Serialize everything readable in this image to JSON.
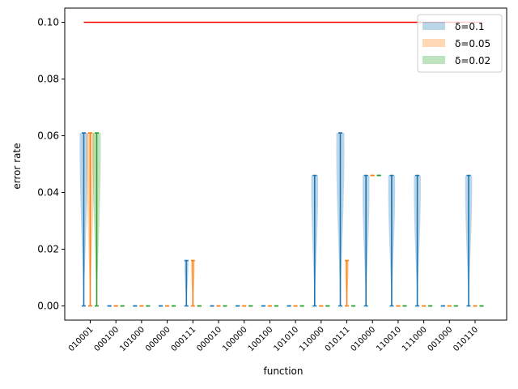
{
  "chart_data": {
    "type": "violin",
    "xlabel": "function",
    "ylabel": "error rate",
    "ylim": [
      -0.005,
      0.105
    ],
    "yticks": [
      0.0,
      0.02,
      0.04,
      0.06,
      0.08,
      0.1
    ],
    "ytick_labels": [
      "0.00",
      "0.02",
      "0.04",
      "0.06",
      "0.08",
      "0.10"
    ],
    "categories": [
      "010001",
      "000100",
      "101000",
      "000000",
      "000111",
      "000010",
      "100000",
      "100100",
      "101010",
      "110000",
      "010111",
      "010000",
      "110010",
      "111000",
      "001000",
      "010110"
    ],
    "reference_line": {
      "y": 0.1,
      "color": "#ff0000",
      "x_from_category": 0,
      "x_to_category": 15
    },
    "legend": {
      "placement": "top-right"
    },
    "series": [
      {
        "name": "δ=0.1",
        "color": "#1f77b4",
        "ranges": [
          [
            0.0,
            0.061
          ],
          [
            0.0,
            0.0
          ],
          [
            0.0,
            0.0
          ],
          [
            0.0,
            0.0
          ],
          [
            0.0,
            0.016
          ],
          [
            0.0,
            0.0
          ],
          [
            0.0,
            0.0
          ],
          [
            0.0,
            0.0
          ],
          [
            0.0,
            0.0
          ],
          [
            0.0,
            0.046
          ],
          [
            0.0,
            0.061
          ],
          [
            0.0,
            0.046
          ],
          [
            0.0,
            0.046
          ],
          [
            0.0,
            0.046
          ],
          [
            0.0,
            0.0
          ],
          [
            0.0,
            0.046
          ]
        ]
      },
      {
        "name": "δ=0.05",
        "color": "#ff7f0e",
        "ranges": [
          [
            0.0,
            0.061
          ],
          [
            0.0,
            0.0
          ],
          [
            0.0,
            0.0
          ],
          [
            0.0,
            0.0
          ],
          [
            0.0,
            0.016
          ],
          [
            0.0,
            0.0
          ],
          [
            0.0,
            0.0
          ],
          [
            0.0,
            0.0
          ],
          [
            0.0,
            0.0
          ],
          [
            0.0,
            0.0
          ],
          [
            0.0,
            0.016
          ],
          [
            0.046,
            0.046
          ],
          [
            0.0,
            0.0
          ],
          [
            0.0,
            0.0
          ],
          [
            0.0,
            0.0
          ],
          [
            0.0,
            0.0
          ]
        ]
      },
      {
        "name": "δ=0.02",
        "color": "#2ca02c",
        "ranges": [
          [
            0.0,
            0.061
          ],
          [
            0.0,
            0.0
          ],
          [
            0.0,
            0.0
          ],
          [
            0.0,
            0.0
          ],
          [
            0.0,
            0.0
          ],
          [
            0.0,
            0.0
          ],
          [
            0.0,
            0.0
          ],
          [
            0.0,
            0.0
          ],
          [
            0.0,
            0.0
          ],
          [
            0.0,
            0.0
          ],
          [
            0.0,
            0.0
          ],
          [
            0.046,
            0.046
          ],
          [
            0.0,
            0.0
          ],
          [
            0.0,
            0.0
          ],
          [
            0.0,
            0.0
          ],
          [
            0.0,
            0.0
          ]
        ]
      }
    ]
  }
}
